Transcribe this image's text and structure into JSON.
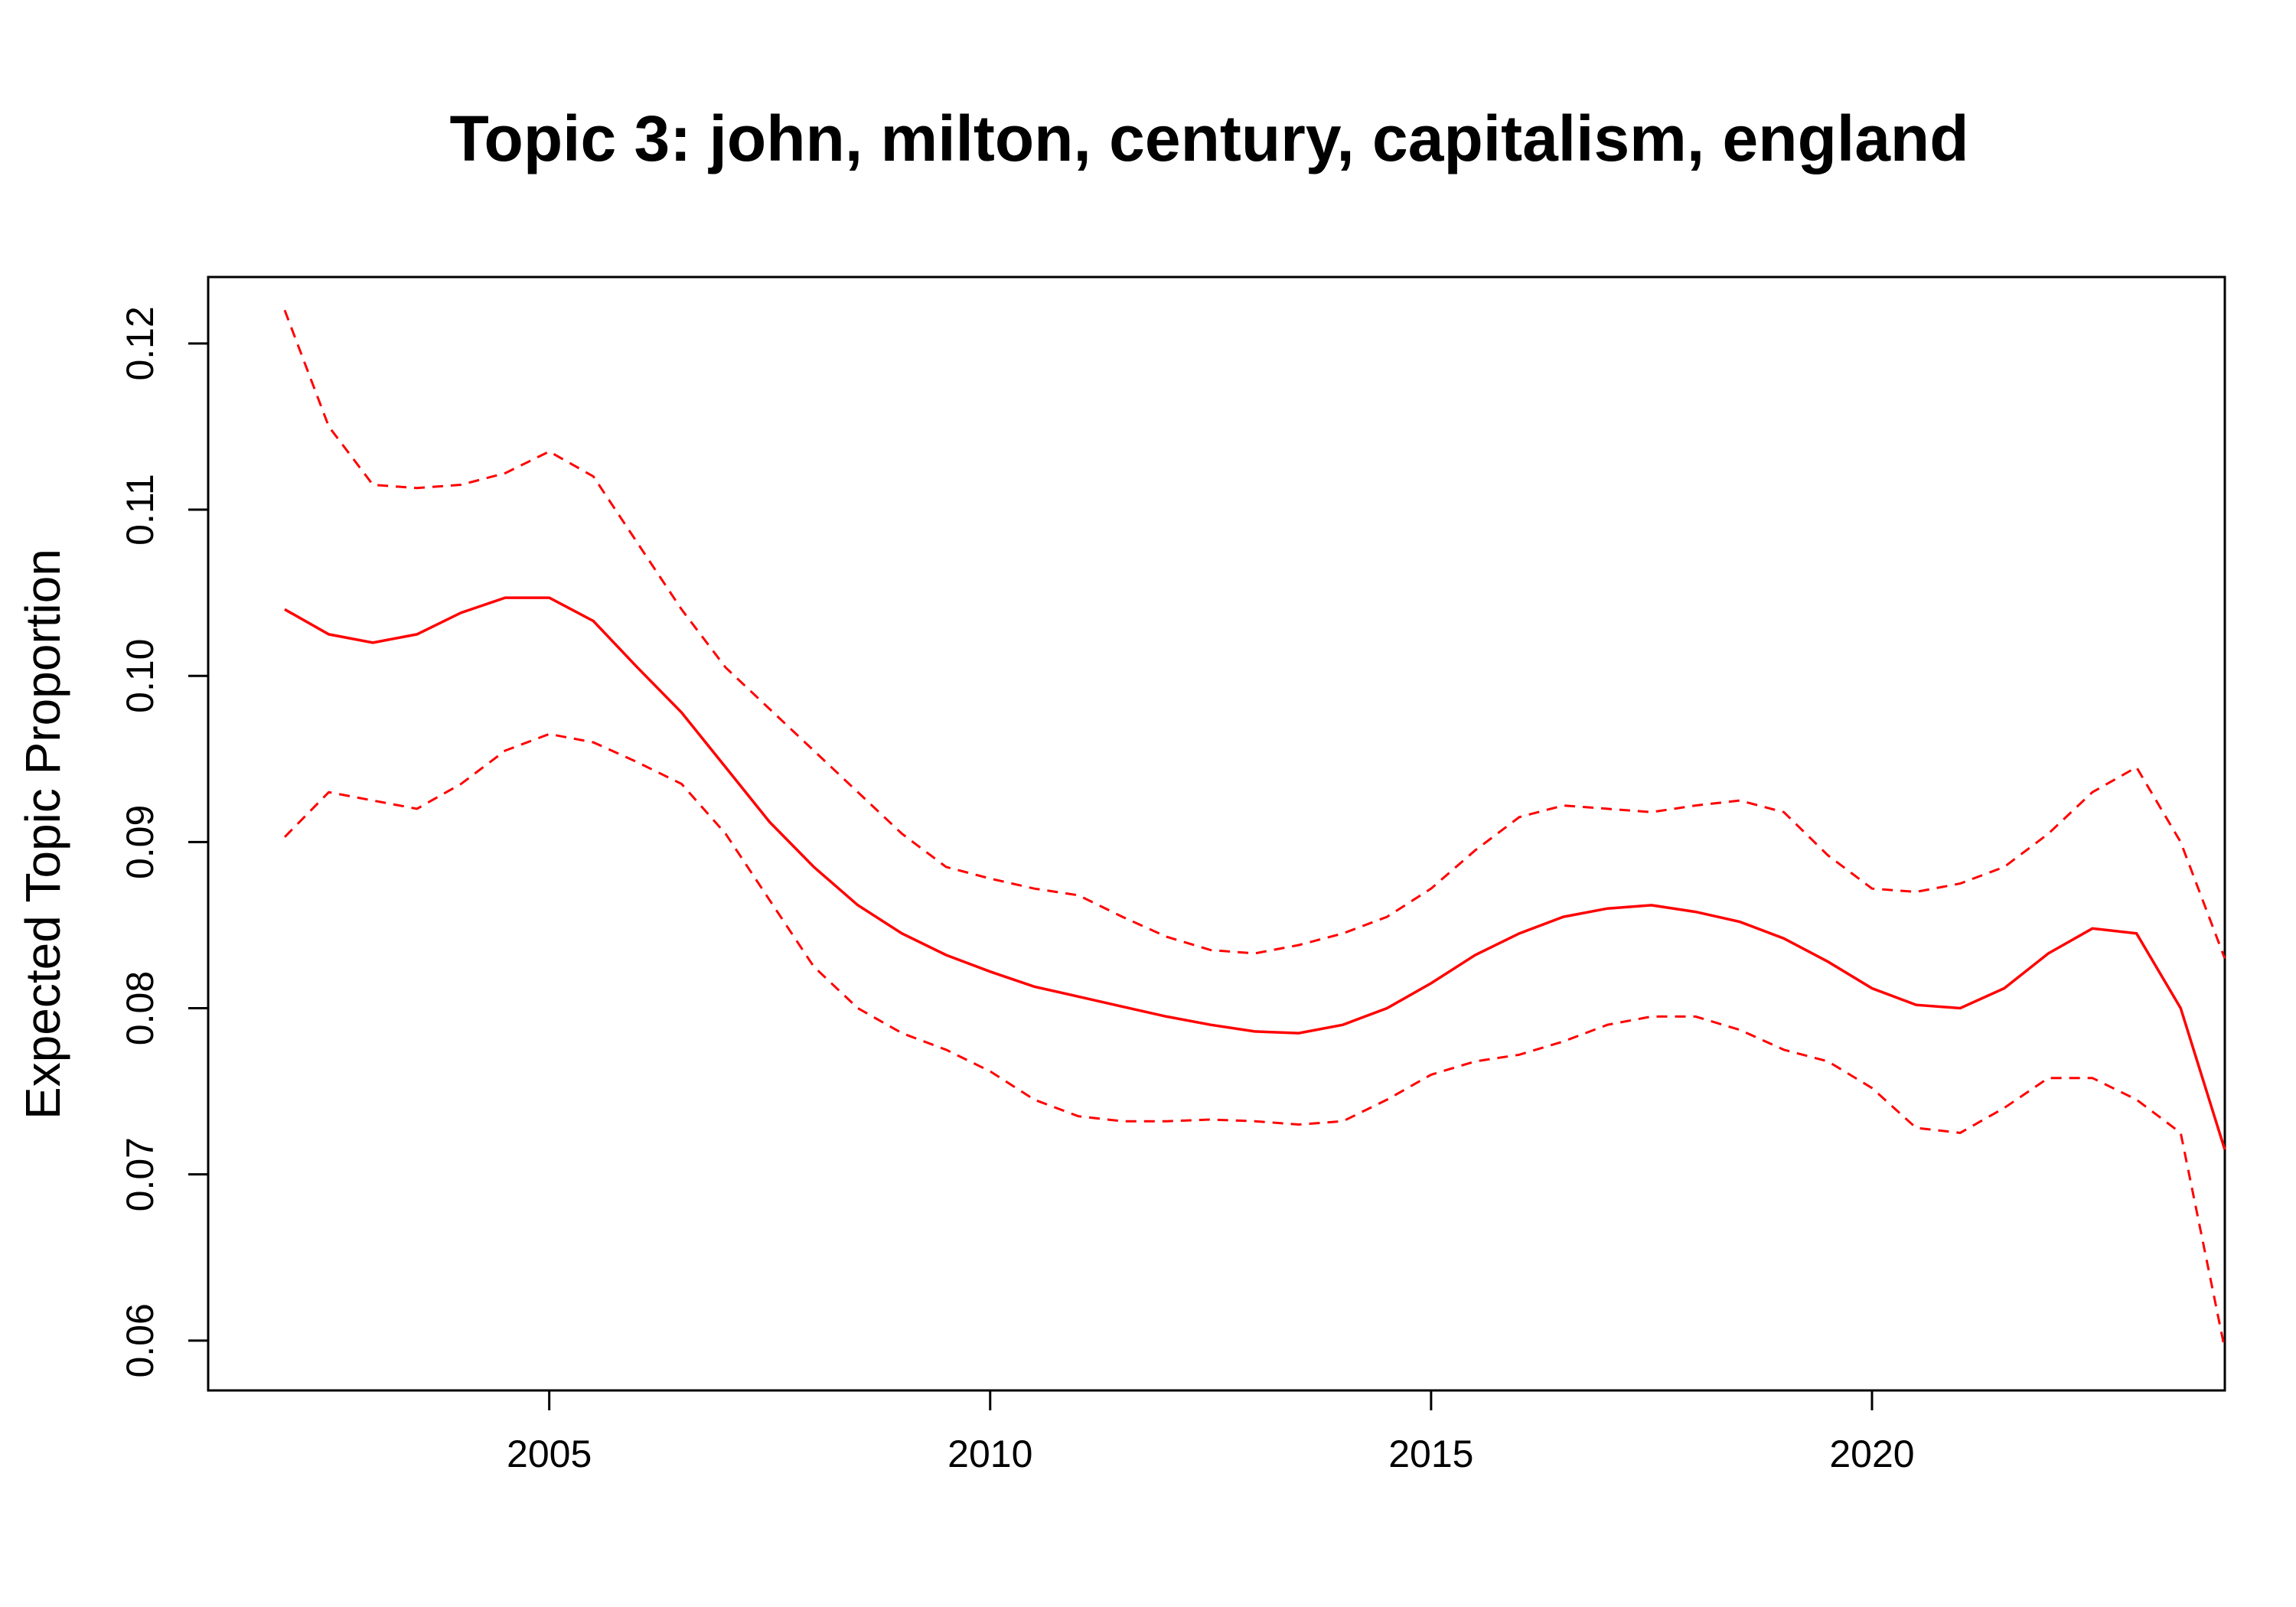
{
  "chart_data": {
    "type": "line",
    "title": "Topic 3: john, milton, century, capitalism, england",
    "xlabel": "",
    "ylabel": "Expected Topic Proportion",
    "xlim": [
      2002,
      2024
    ],
    "ylim": [
      0.057,
      0.124
    ],
    "x_ticks": [
      2005,
      2010,
      2015,
      2020
    ],
    "y_ticks": [
      0.06,
      0.07,
      0.08,
      0.09,
      0.1,
      0.11,
      0.12
    ],
    "x_tick_labels": [
      "2005",
      "2010",
      "2015",
      "2020"
    ],
    "y_tick_labels": [
      "0.06",
      "0.07",
      "0.08",
      "0.09",
      "0.10",
      "0.11",
      "0.12"
    ],
    "grid": false,
    "legend": "none",
    "color": "#ff0000",
    "x": [
      2002.0,
      2002.5,
      2003.0,
      2003.5,
      2004.0,
      2004.5,
      2005.0,
      2005.5,
      2006.0,
      2006.5,
      2007.0,
      2007.5,
      2008.0,
      2008.5,
      2009.0,
      2009.5,
      2010.0,
      2010.5,
      2011.0,
      2011.5,
      2012.0,
      2012.5,
      2013.0,
      2013.5,
      2014.0,
      2014.5,
      2015.0,
      2015.5,
      2016.0,
      2016.5,
      2017.0,
      2017.5,
      2018.0,
      2018.5,
      2019.0,
      2019.5,
      2020.0,
      2020.5,
      2021.0,
      2021.5,
      2022.0,
      2022.5,
      2023.0,
      2023.5,
      2024.0
    ],
    "series": [
      {
        "style": "solid",
        "values": [
          0.104,
          0.1025,
          0.102,
          0.1025,
          0.1038,
          0.1047,
          0.1047,
          0.1033,
          0.1005,
          0.0978,
          0.0945,
          0.0912,
          0.0885,
          0.0862,
          0.0845,
          0.0832,
          0.0822,
          0.0813,
          0.0807,
          0.0801,
          0.0795,
          0.079,
          0.0786,
          0.0785,
          0.079,
          0.08,
          0.0815,
          0.0832,
          0.0845,
          0.0855,
          0.086,
          0.0862,
          0.0858,
          0.0852,
          0.0842,
          0.0828,
          0.0812,
          0.0802,
          0.08,
          0.0812,
          0.0833,
          0.0848,
          0.0845,
          0.08,
          0.0715
        ]
      },
      {
        "style": "dashed",
        "values": [
          0.122,
          0.115,
          0.1115,
          0.1113,
          0.1115,
          0.1122,
          0.1135,
          0.112,
          0.108,
          0.104,
          0.1005,
          0.098,
          0.0955,
          0.093,
          0.0905,
          0.0885,
          0.0878,
          0.0872,
          0.0868,
          0.0855,
          0.0843,
          0.0835,
          0.0833,
          0.0838,
          0.0845,
          0.0855,
          0.0872,
          0.0895,
          0.0915,
          0.0922,
          0.092,
          0.0918,
          0.0922,
          0.0925,
          0.0918,
          0.0892,
          0.0872,
          0.087,
          0.0875,
          0.0885,
          0.0905,
          0.093,
          0.0945,
          0.09,
          0.083
        ]
      },
      {
        "style": "dashed",
        "values": [
          0.0903,
          0.093,
          0.0925,
          0.092,
          0.0935,
          0.0955,
          0.0965,
          0.096,
          0.0948,
          0.0935,
          0.0905,
          0.0865,
          0.0825,
          0.08,
          0.0785,
          0.0775,
          0.0762,
          0.0745,
          0.0735,
          0.0732,
          0.0732,
          0.0733,
          0.0732,
          0.073,
          0.0732,
          0.0745,
          0.076,
          0.0768,
          0.0772,
          0.078,
          0.079,
          0.0795,
          0.0795,
          0.0787,
          0.0775,
          0.0768,
          0.0752,
          0.0728,
          0.0725,
          0.074,
          0.0758,
          0.0758,
          0.0745,
          0.0725,
          0.0595
        ]
      }
    ]
  }
}
